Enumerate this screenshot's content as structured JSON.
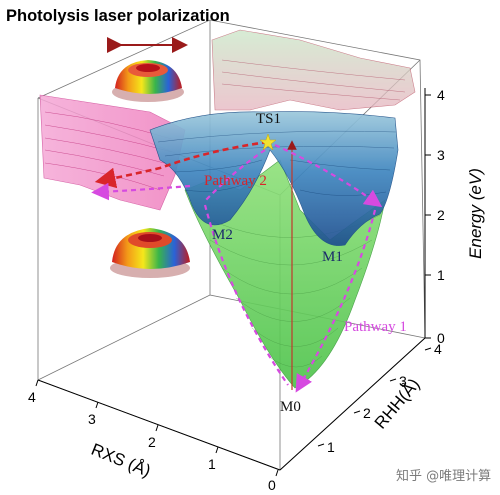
{
  "title": "Photolysis laser polarization",
  "labels": {
    "ts1": "TS1",
    "m1": "M1",
    "m2": "M2",
    "m0": "M0",
    "pathway1": "Pathway 1",
    "pathway2": "Pathway 2"
  },
  "axes": {
    "energy": {
      "label": "Energy (eV)",
      "ticks": [
        "0",
        "1",
        "2",
        "3",
        "4"
      ]
    },
    "rhh": {
      "label": "RHH(Å)",
      "ticks": [
        "0",
        "1",
        "2",
        "3",
        "4"
      ]
    },
    "rxs": {
      "label": "RXS (Å)",
      "ticks": [
        "0",
        "1",
        "2",
        "3",
        "4"
      ]
    }
  },
  "watermark": "知乎 @唯理计算",
  "colors": {
    "pathway1": "#d64ae0",
    "pathway2": "#d9252a",
    "ts_star": "#f2e230",
    "surface_green": "#69d25a",
    "surface_blue": "#2e6fb0",
    "pink_wall": "#f28fc7"
  }
}
